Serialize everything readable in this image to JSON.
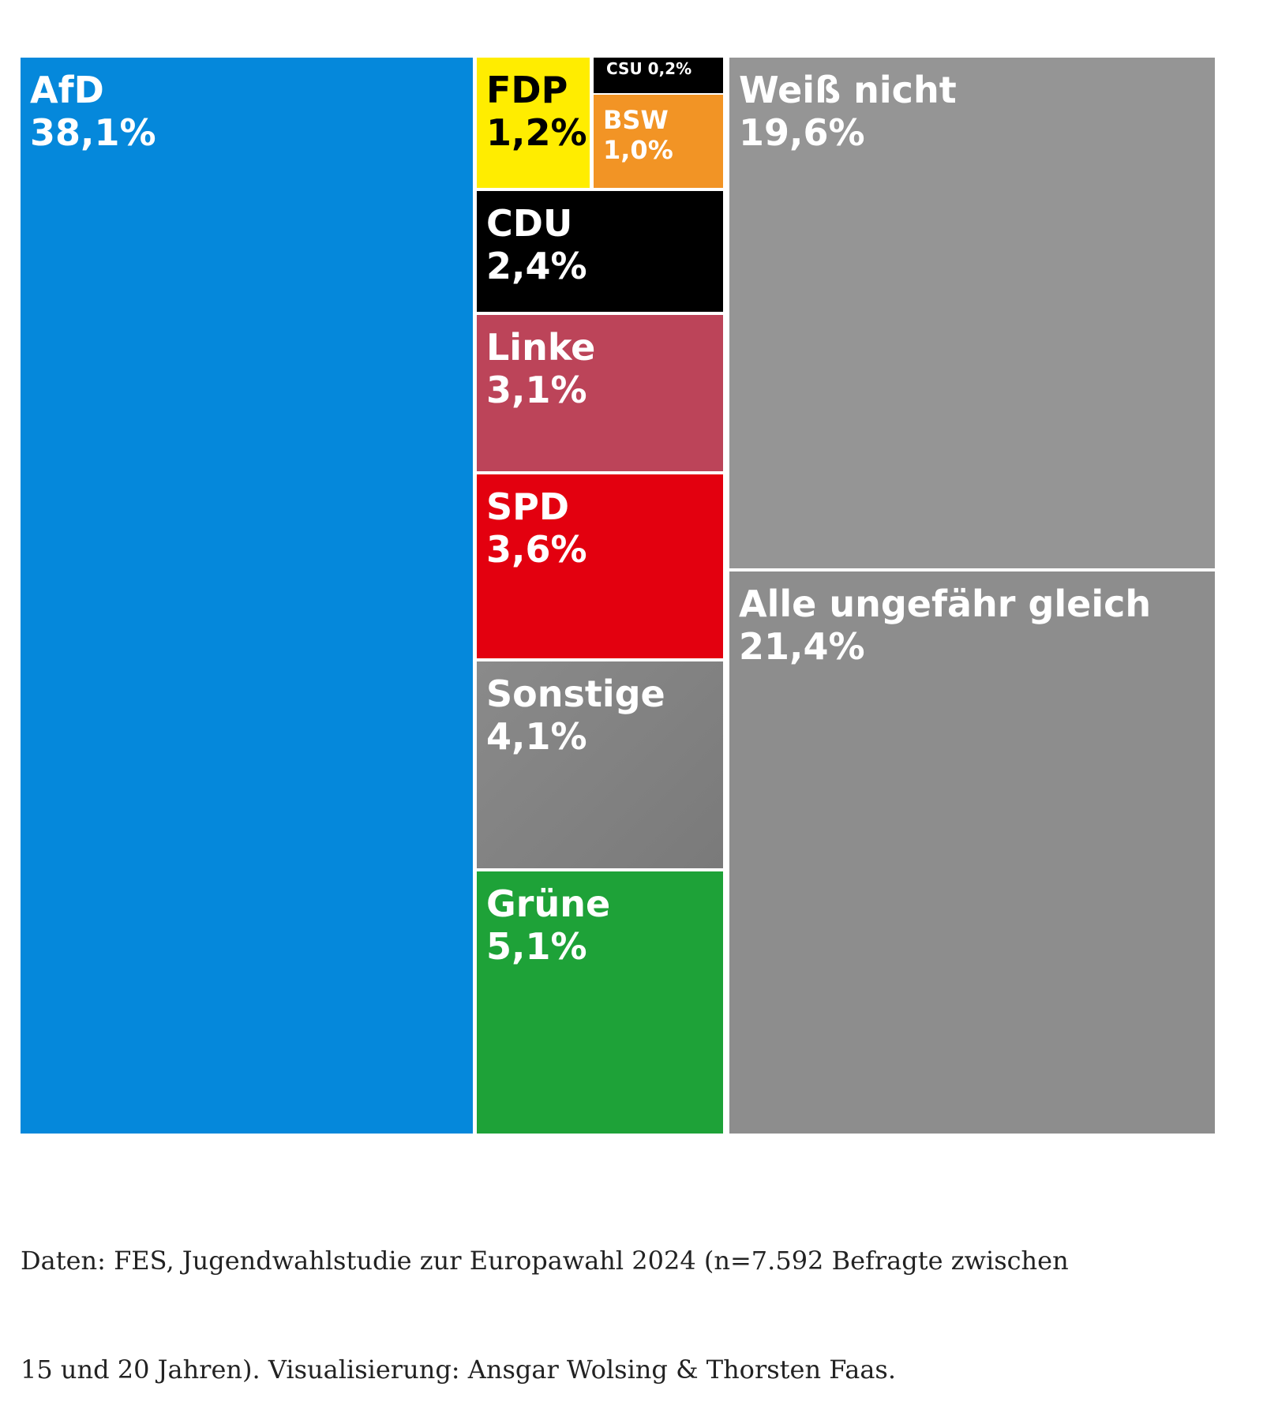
{
  "chart_data": {
    "type": "treemap",
    "unit": "%",
    "items": [
      {
        "key": "afd",
        "label": "AfD",
        "value": 38.1,
        "value_label": "38,1%",
        "color": "#0588db",
        "text_color": "#ffffff"
      },
      {
        "key": "fdp",
        "label": "FDP",
        "value": 1.2,
        "value_label": "1,2%",
        "color": "#ffed00",
        "text_color": "#000000"
      },
      {
        "key": "csu",
        "label": "CSU",
        "value": 0.2,
        "value_label": "0,2%",
        "color": "#000000",
        "text_color": "#ffffff"
      },
      {
        "key": "bsw",
        "label": "BSW",
        "value": 1.0,
        "value_label": "1,0%",
        "color": "#f29425",
        "text_color": "#ffffff"
      },
      {
        "key": "cdu",
        "label": "CDU",
        "value": 2.4,
        "value_label": "2,4%",
        "color": "#000000",
        "text_color": "#ffffff"
      },
      {
        "key": "linke",
        "label": "Linke",
        "value": 3.1,
        "value_label": "3,1%",
        "color": "#bc4459",
        "text_color": "#ffffff"
      },
      {
        "key": "spd",
        "label": "SPD",
        "value": 3.6,
        "value_label": "3,6%",
        "color": "#e3000f",
        "text_color": "#ffffff"
      },
      {
        "key": "sonstige",
        "label": "Sonstige",
        "value": 4.1,
        "value_label": "4,1%",
        "color": "#808080",
        "text_color": "#ffffff"
      },
      {
        "key": "gruene",
        "label": "Grüne",
        "value": 5.1,
        "value_label": "5,1%",
        "color": "#1ea238",
        "text_color": "#ffffff"
      },
      {
        "key": "weiss_nicht",
        "label": "Weiß nicht",
        "value": 19.6,
        "value_label": "19,6%",
        "color": "#959595",
        "text_color": "#ffffff"
      },
      {
        "key": "alle_gleich",
        "label": "Alle ungefähr gleich",
        "value": 21.4,
        "value_label": "21,4%",
        "color": "#8d8d8d",
        "text_color": "#ffffff"
      }
    ]
  },
  "footer": {
    "line1": "Daten: FES, Jugendwahlstudie zur Europawahl 2024 (n=7.592 Befragte zwischen",
    "line2": "15 und 20 Jahren). Visualisierung: Ansgar Wolsing & Thorsten Faas."
  }
}
